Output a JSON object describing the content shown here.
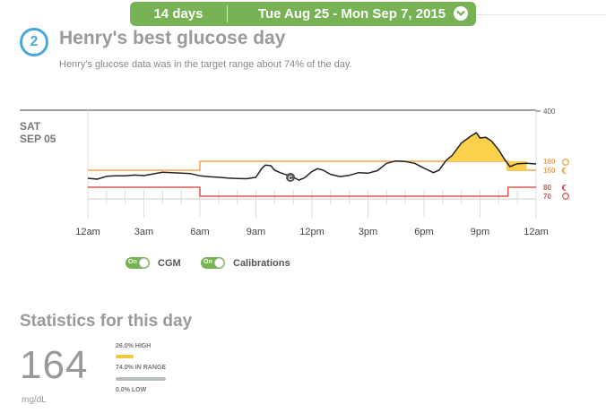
{
  "topbar": {
    "days_label": "14 days",
    "date_range": "Tue Aug 25 - Mon Sep 7, 2015",
    "accent": "#77b255"
  },
  "header": {
    "step_number": "2",
    "title": "Henry's best glucose day",
    "subtitle": "Henry's glucose data was in the target range about 74% of the day."
  },
  "chart_data": {
    "type": "line",
    "day_label_line1": "SAT",
    "day_label_line2": "SEP 05",
    "x_tick_labels": [
      "12am",
      "3am",
      "6am",
      "9am",
      "12pm",
      "3pm",
      "6pm",
      "9pm",
      "12am"
    ],
    "x_range_hours": [
      0,
      24
    ],
    "y_range_mgdl": [
      65,
      400
    ],
    "y_tick_labels": [
      "400",
      "180",
      "150",
      "80",
      "70"
    ],
    "series": [
      {
        "values": [
          [
            0,
            117
          ],
          [
            0.5,
            113
          ],
          [
            1,
            125
          ],
          [
            1.5,
            127
          ],
          [
            2,
            127
          ],
          [
            2.5,
            130
          ],
          [
            3,
            128
          ],
          [
            3.5,
            135
          ],
          [
            4,
            142
          ],
          [
            4.5,
            140
          ],
          [
            5,
            138
          ],
          [
            5.5,
            136
          ],
          [
            6,
            127
          ],
          [
            6.5,
            123
          ],
          [
            7,
            121
          ],
          [
            7.5,
            118
          ],
          [
            8,
            116
          ],
          [
            8.5,
            115
          ],
          [
            9,
            121
          ],
          [
            9.3,
            155
          ],
          [
            9.5,
            167
          ],
          [
            9.8,
            165
          ],
          [
            10,
            150
          ],
          [
            10.3,
            140
          ],
          [
            10.6,
            132
          ],
          [
            10.85,
            128
          ],
          [
            11.3,
            109
          ],
          [
            11.6,
            119
          ],
          [
            12,
            145
          ],
          [
            12.3,
            155
          ],
          [
            12.6,
            150
          ],
          [
            13,
            133
          ],
          [
            13.5,
            124
          ],
          [
            14,
            129
          ],
          [
            14.5,
            140
          ],
          [
            15,
            138
          ],
          [
            15.5,
            148
          ],
          [
            16,
            173
          ],
          [
            16.5,
            181
          ],
          [
            17,
            179
          ],
          [
            17.5,
            173
          ],
          [
            18,
            157
          ],
          [
            18.5,
            140
          ],
          [
            18.8,
            150
          ],
          [
            19.2,
            185
          ],
          [
            19.5,
            205
          ],
          [
            20,
            260
          ],
          [
            20.5,
            290
          ],
          [
            20.8,
            305
          ],
          [
            21,
            282
          ],
          [
            21.3,
            285
          ],
          [
            21.6,
            270
          ],
          [
            22,
            230
          ],
          [
            22.3,
            190
          ],
          [
            22.6,
            162
          ],
          [
            23,
            172
          ],
          [
            23.5,
            173
          ],
          [
            24,
            171
          ]
        ]
      }
    ],
    "calibration_marker": {
      "x_hours": 10.85,
      "y_mgdl": 128,
      "label": "C"
    },
    "target_range_day": [
      80,
      150
    ],
    "target_range_night": [
      70,
      180
    ],
    "colors": {
      "line": "#222222",
      "high_fill": "#fbd14b",
      "high_threshold": "#f5a34d",
      "low_threshold": "#d9574f",
      "grid": "#dddddd"
    }
  },
  "toggles": {
    "cgm": {
      "state": "On",
      "label": "CGM"
    },
    "calibrations": {
      "state": "On",
      "label": "Calibrations"
    }
  },
  "stats": {
    "title": "Statistics for this day",
    "average": "164",
    "unit": "mg/dL",
    "high": {
      "label": "26.0% HIGH",
      "percent": 26.0,
      "color": "#f0c93e"
    },
    "in_range": {
      "label": "74.0% IN RANGE",
      "percent": 74.0,
      "color": "#b8bdbe"
    },
    "low": {
      "label": "0.0% LOW",
      "percent": 0.0,
      "color": "#d9574f"
    }
  }
}
